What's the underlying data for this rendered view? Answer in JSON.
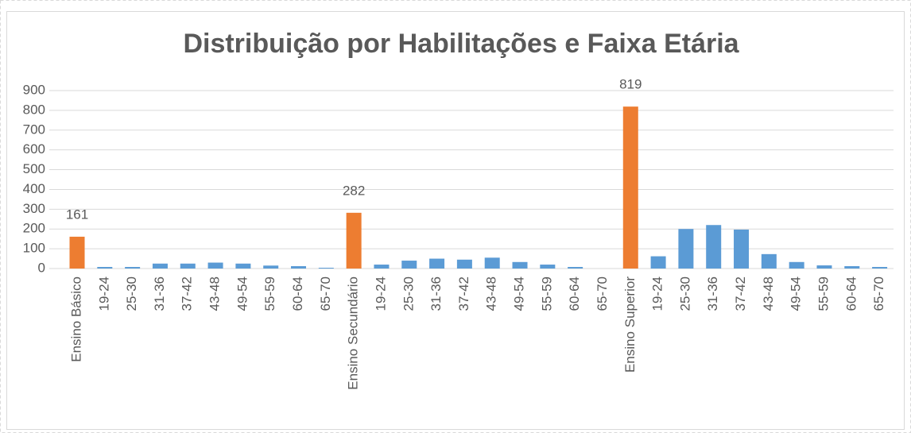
{
  "chart_data": {
    "type": "bar",
    "title": "Distribuição por Habilitações e Faixa Etária",
    "categories": [
      "Ensino Básico",
      "19-24",
      "25-30",
      "31-36",
      "37-42",
      "43-48",
      "49-54",
      "55-59",
      "60-64",
      "65-70",
      "Ensino Secundário",
      "19-24",
      "25-30",
      "31-36",
      "37-42",
      "43-48",
      "49-54",
      "55-59",
      "60-64",
      "65-70",
      "Ensino Superior",
      "19-24",
      "25-30",
      "31-36",
      "37-42",
      "43-48",
      "49-54",
      "55-59",
      "60-64",
      "65-70"
    ],
    "series": [
      {
        "color": "#ed7d31",
        "data_labels": true,
        "values": [
          161,
          null,
          null,
          null,
          null,
          null,
          null,
          null,
          null,
          null,
          282,
          null,
          null,
          null,
          null,
          null,
          null,
          null,
          null,
          null,
          819,
          null,
          null,
          null,
          null,
          null,
          null,
          null,
          null,
          null
        ]
      },
      {
        "color": "#5b9bd5",
        "data_labels": false,
        "values": [
          null,
          8,
          8,
          25,
          25,
          30,
          25,
          15,
          12,
          4,
          null,
          20,
          40,
          50,
          45,
          55,
          33,
          20,
          8,
          0,
          null,
          62,
          200,
          220,
          197,
          73,
          33,
          16,
          12,
          8
        ]
      }
    ],
    "ylim": [
      0,
      900
    ],
    "yticks": [
      0,
      100,
      200,
      300,
      400,
      500,
      600,
      700,
      800,
      900
    ],
    "grid": true
  }
}
